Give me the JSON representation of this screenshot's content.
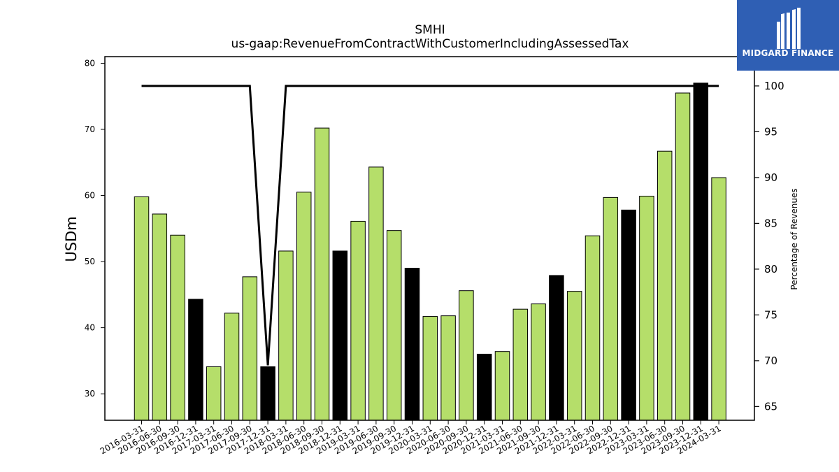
{
  "chart_data": {
    "type": "bar",
    "title": "SMHI",
    "subtitle": "us-gaap:RevenueFromContractWithCustomerIncludingAssessedTax",
    "ylabel": "USDm",
    "y2label": "Percentage of Revenues",
    "ylim": [
      26,
      81
    ],
    "y2lim": [
      63.5,
      103.2
    ],
    "yticks": [
      30,
      40,
      50,
      60,
      70,
      80
    ],
    "y2ticks": [
      65,
      70,
      75,
      80,
      85,
      90,
      95,
      100
    ],
    "categories": [
      "2016-03-31",
      "2016-06-30",
      "2016-09-30",
      "2016-12-31",
      "2017-03-31",
      "2017-06-30",
      "2017-09-30",
      "2017-12-31",
      "2018-03-31",
      "2018-06-30",
      "2018-09-30",
      "2018-12-31",
      "2019-03-31",
      "2019-06-30",
      "2019-09-30",
      "2019-12-31",
      "2020-03-31",
      "2020-06-30",
      "2020-09-30",
      "2020-12-31",
      "2021-03-31",
      "2021-06-30",
      "2021-09-30",
      "2021-12-31",
      "2022-03-31",
      "2022-06-30",
      "2022-09-30",
      "2022-12-31",
      "2023-03-31",
      "2023-06-30",
      "2023-09-30",
      "2023-12-31",
      "2024-03-31"
    ],
    "series": [
      {
        "values": [
          59.8,
          57.2,
          54.0,
          44.3,
          34.1,
          42.2,
          47.7,
          34.1,
          51.6,
          60.5,
          70.2,
          51.6,
          56.1,
          64.3,
          54.7,
          49.0,
          41.7,
          41.8,
          45.6,
          36.0,
          36.4,
          42.8,
          43.6,
          47.9,
          45.5,
          53.9,
          59.7,
          57.8,
          59.9,
          66.7,
          75.5,
          77.0,
          62.7
        ],
        "colors": [
          "#b5de6a",
          "#b5de6a",
          "#b5de6a",
          "#000000",
          "#b5de6a",
          "#b5de6a",
          "#b5de6a",
          "#000000",
          "#b5de6a",
          "#b5de6a",
          "#b5de6a",
          "#000000",
          "#b5de6a",
          "#b5de6a",
          "#b5de6a",
          "#000000",
          "#b5de6a",
          "#b5de6a",
          "#b5de6a",
          "#000000",
          "#b5de6a",
          "#b5de6a",
          "#b5de6a",
          "#000000",
          "#b5de6a",
          "#b5de6a",
          "#b5de6a",
          "#000000",
          "#b5de6a",
          "#b5de6a",
          "#b5de6a",
          "#000000",
          "#b5de6a"
        ]
      },
      {
        "type": "line",
        "axis": "right",
        "color": "#000000",
        "values": [
          100,
          100,
          100,
          100,
          100,
          100,
          100,
          69.5,
          100,
          100,
          100,
          100,
          100,
          100,
          100,
          100,
          100,
          100,
          100,
          100,
          100,
          100,
          100,
          100,
          100,
          100,
          100,
          100,
          100,
          100,
          100,
          100,
          100
        ]
      }
    ],
    "grid": false
  },
  "logo": {
    "text": "MIDGARD FINANCE",
    "bg": "#2f5fb4"
  }
}
